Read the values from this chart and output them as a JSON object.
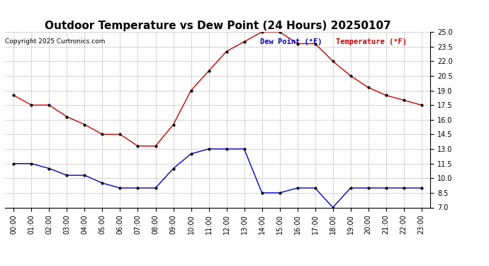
{
  "title": "Outdoor Temperature vs Dew Point (24 Hours) 20250107",
  "copyright": "Copyright 2025 Curtronics.com",
  "legend_dew": "Dew Point (°F)",
  "legend_temp": "Temperature (°F)",
  "hours": [
    "00:00",
    "01:00",
    "02:00",
    "03:00",
    "04:00",
    "05:00",
    "06:00",
    "07:00",
    "08:00",
    "09:00",
    "10:00",
    "11:00",
    "12:00",
    "13:00",
    "14:00",
    "15:00",
    "16:00",
    "17:00",
    "18:00",
    "19:00",
    "20:00",
    "21:00",
    "22:00",
    "23:00"
  ],
  "temperature": [
    18.5,
    17.5,
    17.5,
    16.3,
    15.5,
    14.5,
    14.5,
    13.3,
    13.3,
    15.5,
    19.0,
    21.0,
    23.0,
    24.0,
    25.0,
    25.0,
    23.8,
    23.8,
    22.0,
    20.5,
    19.3,
    18.5,
    18.0,
    17.5
  ],
  "dew_point": [
    11.5,
    11.5,
    11.0,
    10.3,
    10.3,
    9.5,
    9.0,
    9.0,
    9.0,
    11.0,
    12.5,
    13.0,
    13.0,
    13.0,
    8.5,
    8.5,
    9.0,
    9.0,
    7.0,
    9.0,
    9.0,
    9.0,
    9.0,
    9.0
  ],
  "temp_color": "#cc0000",
  "dew_color": "#0000cc",
  "ylim_min": 7.0,
  "ylim_max": 25.0,
  "yticks": [
    7.0,
    8.5,
    10.0,
    11.5,
    13.0,
    14.5,
    16.0,
    17.5,
    19.0,
    20.5,
    22.0,
    23.5,
    25.0
  ],
  "bg_color": "#ffffff",
  "grid_color": "#aaaaaa",
  "title_fontsize": 11,
  "tick_fontsize": 7,
  "copyright_fontsize": 6.5,
  "legend_fontsize": 7.5
}
